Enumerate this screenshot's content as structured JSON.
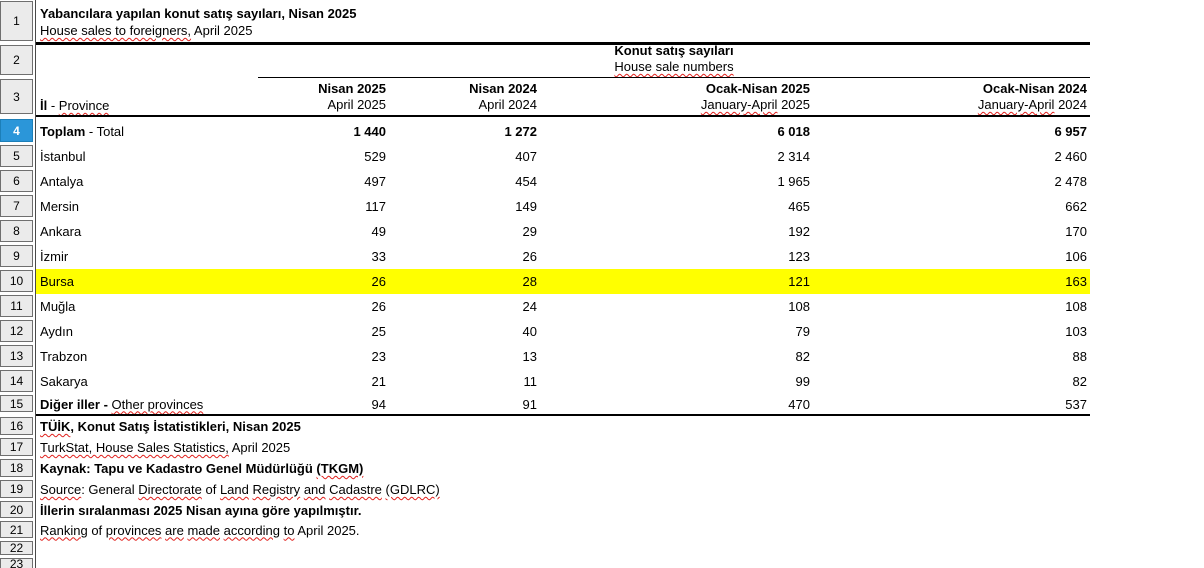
{
  "app": {
    "type": "spreadsheet-view"
  },
  "title": {
    "tr": "Yabancılara yapılan konut satış sayıları, Nisan 2025",
    "en_wavy": "House sales to foreigners,",
    "en_rest": " April 2025"
  },
  "group_header": {
    "tr": "Konut satış sayıları",
    "en": "House sale numbers"
  },
  "province_header": {
    "bold": "İl",
    "sep": " - ",
    "wavy": "Province"
  },
  "columns": [
    {
      "tr": "Nisan 2025",
      "en_wavy": "",
      "en_rest": "April 2025"
    },
    {
      "tr": "Nisan 2024",
      "en_wavy": "",
      "en_rest": "April 2024"
    },
    {
      "tr": "Ocak-Nisan 2025",
      "en_wavy": "January-April",
      "en_rest": " 2025"
    },
    {
      "tr": "Ocak-Nisan 2024",
      "en_wavy": "January-April",
      "en_rest": " 2024"
    }
  ],
  "row_numbers": [
    "1",
    "2",
    "3",
    "4",
    "5",
    "6",
    "7",
    "8",
    "9",
    "10",
    "11",
    "12",
    "13",
    "14",
    "15",
    "16",
    "17",
    "18",
    "19",
    "20",
    "21",
    "22",
    "23"
  ],
  "selected_row_number": "4",
  "rows": [
    {
      "bold": "Toplam",
      "label": " - Total",
      "wavy": "",
      "v": [
        "1 440",
        "1 272",
        "6 018",
        "6 957"
      ]
    },
    {
      "bold": "",
      "label": "İstanbul",
      "wavy": "",
      "v": [
        "529",
        "407",
        "2 314",
        "2 460"
      ]
    },
    {
      "bold": "",
      "label": "Antalya",
      "wavy": "",
      "v": [
        "497",
        "454",
        "1 965",
        "2 478"
      ]
    },
    {
      "bold": "",
      "label": "Mersin",
      "wavy": "",
      "v": [
        "117",
        "149",
        "465",
        "662"
      ]
    },
    {
      "bold": "",
      "label": "Ankara",
      "wavy": "",
      "v": [
        "49",
        "29",
        "192",
        "170"
      ]
    },
    {
      "bold": "",
      "label": "İzmir",
      "wavy": "",
      "v": [
        "33",
        "26",
        "123",
        "106"
      ]
    },
    {
      "bold": "",
      "label": "Bursa",
      "wavy": "",
      "v": [
        "26",
        "28",
        "121",
        "163"
      ]
    },
    {
      "bold": "",
      "label": "Muğla",
      "wavy": "",
      "v": [
        "26",
        "24",
        "108",
        "108"
      ]
    },
    {
      "bold": "",
      "label": "Aydın",
      "wavy": "",
      "v": [
        "25",
        "40",
        "79",
        "103"
      ]
    },
    {
      "bold": "",
      "label": "Trabzon",
      "wavy": "",
      "v": [
        "23",
        "13",
        "82",
        "88"
      ]
    },
    {
      "bold": "",
      "label": "Sakarya",
      "wavy": "",
      "v": [
        "21",
        "11",
        "99",
        "82"
      ]
    },
    {
      "bold": "Diğer iller -",
      "label": " ",
      "wavy": "Other provinces",
      "v": [
        "94",
        "91",
        "470",
        "537"
      ]
    }
  ],
  "highlighted_province": "Bursa",
  "notes": [
    [
      {
        "t": "TÜİK",
        "b": 1,
        "w": 1
      },
      {
        "t": ", Konut Satış İstatistikleri, Nisan 2025",
        "b": 1
      }
    ],
    [
      {
        "t": "TurkStat, House Sales Statistics,",
        "w": 1
      },
      {
        "t": " April 2025"
      }
    ],
    [
      {
        "t": "Kaynak: Tapu ve Kadastro Genel Müdürlüğü ",
        "b": 1
      },
      {
        "t": "(TKGM)",
        "b": 1,
        "w": 1
      }
    ],
    [
      {
        "t": "Source",
        "w": 1
      },
      {
        "t": ": General "
      },
      {
        "t": "Directorate",
        "w": 1
      },
      {
        "t": " of "
      },
      {
        "t": "Land",
        "w": 1
      },
      {
        "t": " "
      },
      {
        "t": "Registry",
        "w": 1
      },
      {
        "t": " "
      },
      {
        "t": "and",
        "w": 1
      },
      {
        "t": " "
      },
      {
        "t": "Cadastre",
        "w": 1
      },
      {
        "t": " "
      },
      {
        "t": "(GDLRC)",
        "w": 1
      }
    ],
    [
      {
        "t": "İllerin sıralanması 2025 Nisan ayına göre yapılmıştır.",
        "b": 1
      }
    ],
    [
      {
        "t": "Ranking",
        "w": 1
      },
      {
        "t": " of "
      },
      {
        "t": "provinces",
        "w": 1
      },
      {
        "t": " "
      },
      {
        "t": "are",
        "w": 1
      },
      {
        "t": " "
      },
      {
        "t": "made",
        "w": 1
      },
      {
        "t": " "
      },
      {
        "t": "according",
        "w": 1
      },
      {
        "t": " "
      },
      {
        "t": "to",
        "w": 1
      },
      {
        "t": " April 2025."
      }
    ]
  ],
  "colors": {
    "highlight": "#ffff00",
    "selected_row_header": "#2b96d9",
    "row_header_bg": "#ebebeb",
    "squiggle": "#e0201c"
  }
}
